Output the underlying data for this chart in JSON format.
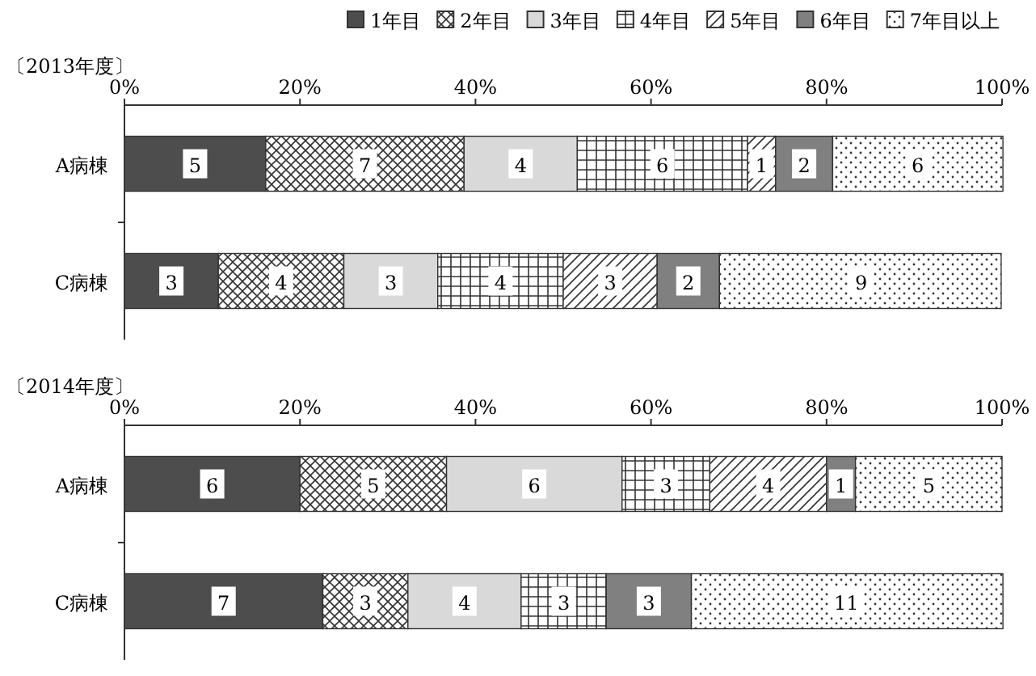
{
  "chart_data": [
    {
      "type": "bar",
      "orientation": "horizontal",
      "stacked": true,
      "title": "〔2013年度〕",
      "categories": [
        "A病棟",
        "C病棟"
      ],
      "xlim": [
        0,
        100
      ],
      "xticks": [
        {
          "value": 0,
          "label": "0%"
        },
        {
          "value": 20,
          "label": "20%"
        },
        {
          "value": 40,
          "label": "40%"
        },
        {
          "value": 60,
          "label": "60%"
        },
        {
          "value": 80,
          "label": "80%"
        },
        {
          "value": 100,
          "label": "100%"
        }
      ],
      "legend": "top",
      "grid": false,
      "series": [
        {
          "name": "1年目",
          "color": "#4d4d4d",
          "values": [
            16.1,
            10.7
          ]
        },
        {
          "name": "2年目",
          "color": "#333333",
          "values": [
            22.6,
            14.3
          ]
        },
        {
          "name": "3年目",
          "color": "#d9d9d9",
          "values": [
            12.9,
            10.7
          ]
        },
        {
          "name": "4年目",
          "color": "#333333",
          "values": [
            19.4,
            14.3
          ]
        },
        {
          "name": "5年目",
          "color": "#333333",
          "values": [
            3.2,
            10.7
          ]
        },
        {
          "name": "6年目",
          "color": "#808080",
          "values": [
            6.5,
            7.1
          ]
        },
        {
          "name": "7年目以上",
          "color": "#333333",
          "values": [
            19.4,
            32.1
          ]
        }
      ],
      "annotations": [
        {
          "text": "5",
          "x": 8.05,
          "y": "A病棟"
        },
        {
          "text": "7",
          "x": 27.4,
          "y": "A病棟"
        },
        {
          "text": "4",
          "x": 45.15,
          "y": "A病棟"
        },
        {
          "text": "6",
          "x": 61.3,
          "y": "A病棟"
        },
        {
          "text": "1",
          "x": 72.6,
          "y": "A病棟"
        },
        {
          "text": "2",
          "x": 77.45,
          "y": "A病棟"
        },
        {
          "text": "6",
          "x": 90.4,
          "y": "A病棟"
        },
        {
          "text": "3",
          "x": 5.35,
          "y": "C病棟"
        },
        {
          "text": "4",
          "x": 17.85,
          "y": "C病棟"
        },
        {
          "text": "3",
          "x": 30.35,
          "y": "C病棟"
        },
        {
          "text": "4",
          "x": 42.85,
          "y": "C病棟"
        },
        {
          "text": "3",
          "x": 55.35,
          "y": "C病棟"
        },
        {
          "text": "2",
          "x": 64.25,
          "y": "C病棟"
        },
        {
          "text": "9",
          "x": 83.95,
          "y": "C病棟"
        }
      ]
    },
    {
      "type": "bar",
      "orientation": "horizontal",
      "stacked": true,
      "title": "〔2014年度〕",
      "categories": [
        "A病棟",
        "C病棟"
      ],
      "xlim": [
        0,
        100
      ],
      "xticks": [
        {
          "value": 0,
          "label": "0%"
        },
        {
          "value": 20,
          "label": "20%"
        },
        {
          "value": 40,
          "label": "40%"
        },
        {
          "value": 60,
          "label": "60%"
        },
        {
          "value": 80,
          "label": "80%"
        },
        {
          "value": 100,
          "label": "100%"
        }
      ],
      "grid": false,
      "series": [
        {
          "color": "#4d4d4d",
          "values": [
            20,
            22.6
          ]
        },
        {
          "color": "#333333",
          "values": [
            16.7,
            9.7
          ]
        },
        {
          "color": "#d9d9d9",
          "values": [
            20,
            12.9
          ]
        },
        {
          "color": "#333333",
          "values": [
            10,
            9.7
          ]
        },
        {
          "color": "#333333",
          "values": [
            13.3,
            0
          ]
        },
        {
          "color": "#808080",
          "values": [
            3.3,
            9.7
          ]
        },
        {
          "color": "#333333",
          "values": [
            16.7,
            35.5
          ]
        }
      ],
      "annotations": [
        {
          "text": "6",
          "x": 10,
          "y": "A病棟"
        },
        {
          "text": "5",
          "x": 28.35,
          "y": "A病棟"
        },
        {
          "text": "6",
          "x": 46.7,
          "y": "A病棟"
        },
        {
          "text": "3",
          "x": 61.7,
          "y": "A病棟"
        },
        {
          "text": "4",
          "x": 73.35,
          "y": "A病棟"
        },
        {
          "text": "1",
          "x": 81.65,
          "y": "A病棟"
        },
        {
          "text": "5",
          "x": 91.65,
          "y": "A病棟"
        },
        {
          "text": "7",
          "x": 11.3,
          "y": "C病棟"
        },
        {
          "text": "3",
          "x": 27.45,
          "y": "C病棟"
        },
        {
          "text": "4",
          "x": 38.75,
          "y": "C病棟"
        },
        {
          "text": "3",
          "x": 50.05,
          "y": "C病棟"
        },
        {
          "text": "3",
          "x": 59.75,
          "y": "C病棟"
        },
        {
          "text": "11",
          "x": 82.25,
          "y": "C病棟"
        }
      ]
    }
  ]
}
